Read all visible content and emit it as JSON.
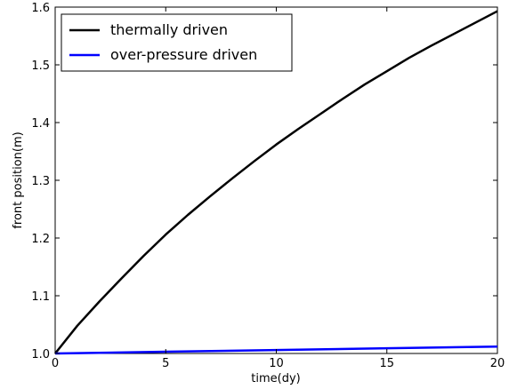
{
  "chart_data": {
    "type": "line",
    "title": "",
    "xlabel": "time(dy)",
    "ylabel": "front position(m)",
    "xlim": [
      0,
      20
    ],
    "ylim": [
      1.0,
      1.6
    ],
    "xticks": [
      0,
      5,
      10,
      15,
      20
    ],
    "xtick_labels": [
      "0",
      "5",
      "10",
      "15",
      "20"
    ],
    "yticks": [
      1.0,
      1.1,
      1.2,
      1.3,
      1.4,
      1.5,
      1.6
    ],
    "ytick_labels": [
      "1.0",
      "1.1",
      "1.2",
      "1.3",
      "1.4",
      "1.5",
      "1.6"
    ],
    "grid": false,
    "legend_position": "top-left",
    "series": [
      {
        "name": "thermally driven",
        "color": "#000000",
        "x": [
          0,
          1,
          2,
          3,
          4,
          5,
          6,
          7,
          8,
          9,
          10,
          11,
          12,
          13,
          14,
          15,
          16,
          17,
          18,
          19,
          20
        ],
        "y": [
          1.0,
          1.048,
          1.09,
          1.13,
          1.169,
          1.206,
          1.24,
          1.272,
          1.303,
          1.333,
          1.362,
          1.389,
          1.415,
          1.441,
          1.466,
          1.489,
          1.512,
          1.533,
          1.553,
          1.573,
          1.593
        ]
      },
      {
        "name": "over-pressure driven",
        "color": "#0000ff",
        "x": [
          0,
          5,
          10,
          15,
          20
        ],
        "y": [
          1.0,
          1.003,
          1.006,
          1.009,
          1.012
        ]
      }
    ]
  }
}
